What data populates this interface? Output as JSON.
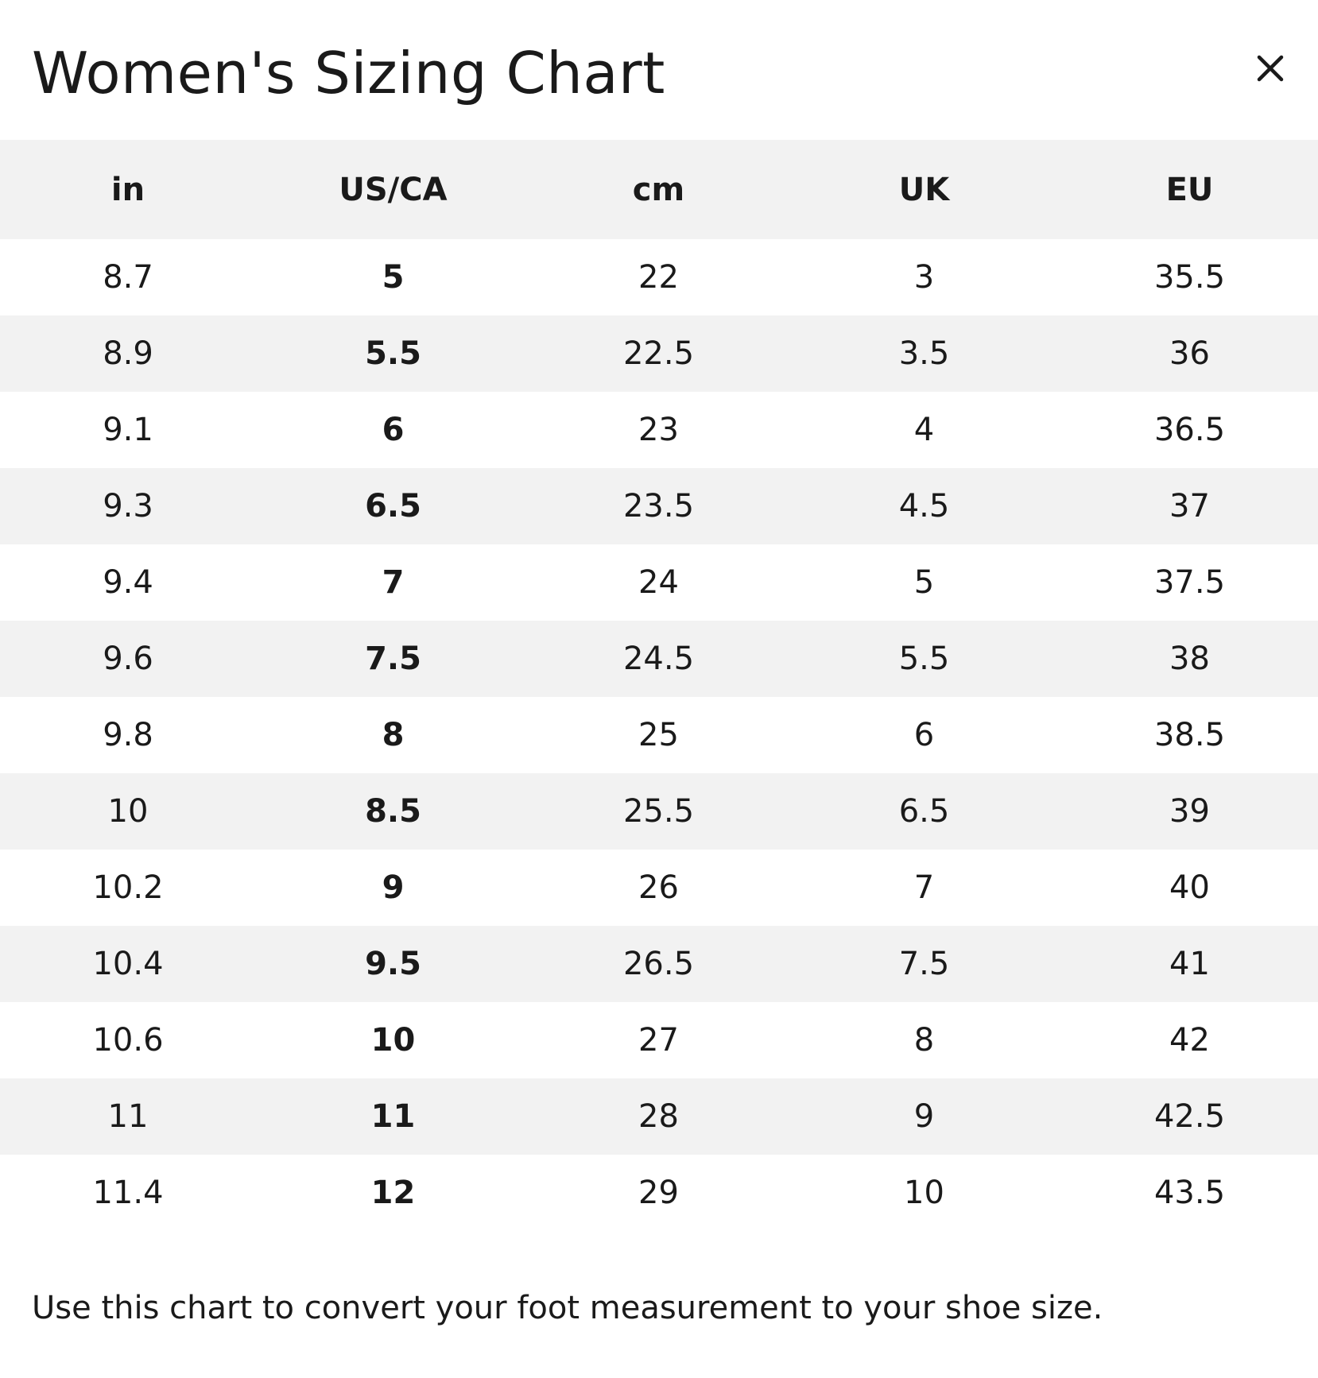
{
  "modal": {
    "title": "Women's Sizing Chart",
    "close_icon": "close-icon",
    "note": "Use this chart to convert your foot measurement to your shoe size."
  },
  "table": {
    "headers": [
      "in",
      "US/CA",
      "cm",
      "UK",
      "EU"
    ],
    "rows": [
      [
        "8.7",
        "5",
        "22",
        "3",
        "35.5"
      ],
      [
        "8.9",
        "5.5",
        "22.5",
        "3.5",
        "36"
      ],
      [
        "9.1",
        "6",
        "23",
        "4",
        "36.5"
      ],
      [
        "9.3",
        "6.5",
        "23.5",
        "4.5",
        "37"
      ],
      [
        "9.4",
        "7",
        "24",
        "5",
        "37.5"
      ],
      [
        "9.6",
        "7.5",
        "24.5",
        "5.5",
        "38"
      ],
      [
        "9.8",
        "8",
        "25",
        "6",
        "38.5"
      ],
      [
        "10",
        "8.5",
        "25.5",
        "6.5",
        "39"
      ],
      [
        "10.2",
        "9",
        "26",
        "7",
        "40"
      ],
      [
        "10.4",
        "9.5",
        "26.5",
        "7.5",
        "41"
      ],
      [
        "10.6",
        "10",
        "27",
        "8",
        "42"
      ],
      [
        "11",
        "11",
        "28",
        "9",
        "42.5"
      ],
      [
        "11.4",
        "12",
        "29",
        "10",
        "43.5"
      ]
    ]
  },
  "colors": {
    "text": "#1a1a1a",
    "stripe": "#f2f2f2",
    "background": "#ffffff"
  }
}
